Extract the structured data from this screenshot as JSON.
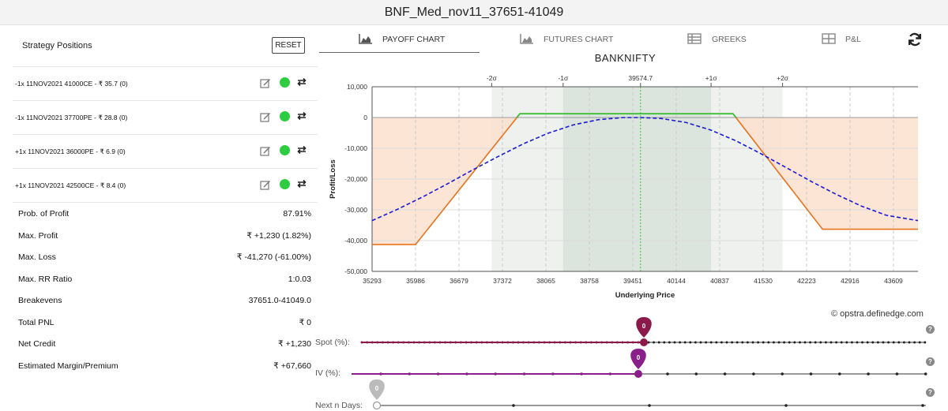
{
  "window_title": "BNF_Med_nov11_37651-41049",
  "left": {
    "header": "Strategy Positions",
    "reset_label": "RESET",
    "positions": [
      {
        "label": "-1x 11NOV2021 41000CE - ₹ 35.7 (0)"
      },
      {
        "label": "-1x 11NOV2021 37700PE - ₹ 28.8 (0)"
      },
      {
        "label": "+1x 11NOV2021 36000PE - ₹ 6.9 (0)"
      },
      {
        "label": "+1x 11NOV2021 42500CE - ₹ 8.4 (0)"
      }
    ],
    "stats": [
      {
        "k": "Prob. of Profit",
        "v": "87.91%"
      },
      {
        "k": "Max. Profit",
        "v": "₹ +1,230 (1.82%)"
      },
      {
        "k": "Max. Loss",
        "v": "₹ -41,270 (-61.00%)"
      },
      {
        "k": "Max. RR Ratio",
        "v": "1:0.03"
      },
      {
        "k": "Breakevens",
        "v": "37651.0-41049.0"
      },
      {
        "k": "Total PNL",
        "v": "₹ 0"
      },
      {
        "k": "Net Credit",
        "v": "₹ +1,230"
      },
      {
        "k": "Estimated Margin/Premium",
        "v": "₹ +67,660"
      }
    ]
  },
  "tabs": [
    {
      "label": "PAYOFF CHART",
      "icon": "area-chart-icon"
    },
    {
      "label": "FUTURES CHART",
      "icon": "area-chart-icon"
    },
    {
      "label": "GREEKS",
      "icon": "table-icon"
    },
    {
      "label": "P&L",
      "icon": "grid-icon"
    }
  ],
  "chart": {
    "title": "BANKNIFTY",
    "credit": "opstra.definedge.com"
  },
  "chart_data": {
    "type": "line",
    "title": "BANKNIFTY",
    "xlabel": "Underlying Price",
    "ylabel": "Profit/Loss",
    "x_ticks": [
      "35293",
      "35986",
      "36679",
      "37372",
      "38065",
      "38758",
      "39451",
      "40144",
      "40837",
      "41530",
      "42223",
      "42916",
      "43609"
    ],
    "y_ticks": [
      "10,000",
      "0",
      "-10,000",
      "-20,000",
      "-30,000",
      "-40,000",
      "-50,000"
    ],
    "top_ticks": [
      {
        "label": "-2σ",
        "x": 37200
      },
      {
        "label": "-1σ",
        "x": 38340
      },
      {
        "label": "39574.7",
        "x": 39574.7
      },
      {
        "label": "+1σ",
        "x": 40700
      },
      {
        "label": "+2σ",
        "x": 41840
      }
    ],
    "xlim": [
      35293,
      44000
    ],
    "ylim": [
      -50000,
      10000
    ],
    "series": [
      {
        "type": "expiry",
        "x": [
          35293,
          35986,
          37651,
          41049,
          42478,
          44000
        ],
        "y": [
          -41270,
          -41270,
          1230,
          1230,
          -36300,
          -36300
        ]
      },
      {
        "type": "today",
        "x": [
          35293,
          35700,
          36100,
          36500,
          36900,
          37300,
          37700,
          38100,
          38500,
          38900,
          39300,
          39574.7,
          39900,
          40300,
          40700,
          41100,
          41500,
          41900,
          42300,
          42700,
          43100,
          43500,
          44000
        ],
        "y": [
          -33500,
          -29800,
          -25800,
          -21500,
          -17000,
          -12700,
          -8600,
          -5100,
          -2400,
          -700,
          0,
          0,
          -300,
          -1600,
          -4100,
          -7600,
          -11800,
          -16300,
          -20800,
          -25000,
          -28800,
          -31800,
          -33500
        ]
      }
    ],
    "grid": true
  },
  "sliders": {
    "spot": {
      "label": "Spot (%):",
      "value": "0"
    },
    "iv": {
      "label": "IV (%):",
      "value": "0"
    },
    "days": {
      "label": "Next n Days:",
      "value": "0"
    },
    "help": "?"
  },
  "colors": {
    "expiry_line": "#e8731c",
    "profit_line": "#3ec13e",
    "today_line": "#1a1ad6",
    "loss_fill": "#fbe0cc",
    "profit_fill": "#e5ecdf",
    "sd1_band": "#dbe4dd",
    "sd2_band": "#eef1ee",
    "spot_slider": "#8b1a4a",
    "iv_slider": "#8a1f8a",
    "days_slider": "#bbbbbb"
  }
}
